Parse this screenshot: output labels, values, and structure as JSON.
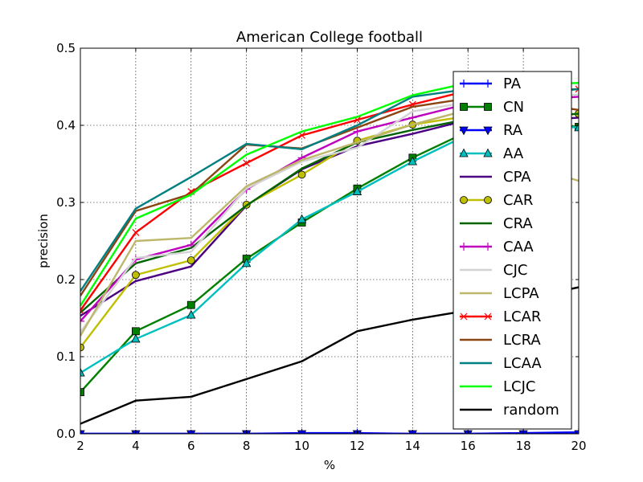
{
  "chart_data": {
    "type": "line",
    "title": "American College football",
    "xlabel": "%",
    "ylabel": "precision",
    "xlim": [
      2,
      20
    ],
    "ylim": [
      0.0,
      0.5
    ],
    "x": [
      2,
      4,
      6,
      8,
      10,
      12,
      14,
      16,
      18,
      20
    ],
    "x_ticks": [
      "2",
      "4",
      "6",
      "8",
      "10",
      "12",
      "14",
      "16",
      "18",
      "20"
    ],
    "y_ticks": [
      "0.0",
      "0.1",
      "0.2",
      "0.3",
      "0.4",
      "0.5"
    ],
    "grid": true,
    "legend_position": "right",
    "series": [
      {
        "name": "PA",
        "color": "#0000ff",
        "marker": "plus",
        "values": [
          0.0,
          0.0,
          0.0,
          0.0,
          0.001,
          0.001,
          0.0,
          0.0,
          0.001,
          0.002
        ]
      },
      {
        "name": "CN",
        "color": "#008000",
        "marker": "square",
        "values": [
          0.054,
          0.133,
          0.167,
          0.227,
          0.274,
          0.318,
          0.358,
          0.392,
          0.405,
          0.398
        ]
      },
      {
        "name": "RA",
        "color": "#0000ff",
        "marker": "triangle-down",
        "values": [
          0.0,
          0.0,
          0.0,
          0.0,
          0.0,
          0.0,
          0.0,
          0.0,
          0.0,
          0.0
        ]
      },
      {
        "name": "AA",
        "color": "#00bfbf",
        "marker": "triangle-up",
        "values": [
          0.079,
          0.123,
          0.154,
          0.221,
          0.278,
          0.314,
          0.353,
          0.388,
          0.402,
          0.397
        ]
      },
      {
        "name": "CPA",
        "color": "#4b0082",
        "marker": "none",
        "values": [
          0.153,
          0.198,
          0.217,
          0.296,
          0.343,
          0.373,
          0.389,
          0.407,
          0.405,
          0.41
        ]
      },
      {
        "name": "CAR",
        "color": "#bfbf00",
        "marker": "circle",
        "values": [
          0.112,
          0.206,
          0.225,
          0.297,
          0.336,
          0.38,
          0.401,
          0.412,
          0.41,
          0.415
        ]
      },
      {
        "name": "CRA",
        "color": "#006400",
        "marker": "none",
        "values": [
          0.157,
          0.221,
          0.241,
          0.296,
          0.344,
          0.378,
          0.394,
          0.408,
          0.41,
          0.415
        ]
      },
      {
        "name": "CAA",
        "color": "#bf00bf",
        "marker": "plus",
        "values": [
          0.146,
          0.226,
          0.245,
          0.317,
          0.358,
          0.392,
          0.41,
          0.428,
          0.432,
          0.437
        ]
      },
      {
        "name": "CJC",
        "color": "#d3d3d3",
        "marker": "none",
        "values": [
          0.132,
          0.228,
          0.236,
          0.318,
          0.353,
          0.371,
          0.418,
          0.43,
          0.432,
          0.44
        ]
      },
      {
        "name": "LCPA",
        "color": "#bdb76b",
        "marker": "none",
        "values": [
          0.127,
          0.25,
          0.254,
          0.321,
          0.355,
          0.378,
          0.401,
          0.42,
          0.35,
          0.328
        ]
      },
      {
        "name": "LCAR",
        "color": "#ff0000",
        "marker": "x",
        "values": [
          0.16,
          0.261,
          0.314,
          0.351,
          0.387,
          0.407,
          0.427,
          0.445,
          0.443,
          0.447
        ]
      },
      {
        "name": "LCRA",
        "color": "#8b4513",
        "marker": "none",
        "values": [
          0.179,
          0.289,
          0.311,
          0.375,
          0.37,
          0.397,
          0.424,
          0.435,
          0.43,
          0.42
        ]
      },
      {
        "name": "LCAA",
        "color": "#008080",
        "marker": "none",
        "values": [
          0.185,
          0.292,
          0.333,
          0.376,
          0.369,
          0.4,
          0.437,
          0.447,
          0.44,
          0.447
        ]
      },
      {
        "name": "LCJC",
        "color": "#00ff00",
        "marker": "none",
        "values": [
          0.166,
          0.279,
          0.31,
          0.362,
          0.392,
          0.411,
          0.439,
          0.455,
          0.452,
          0.455
        ]
      },
      {
        "name": "random",
        "color": "#000000",
        "marker": "none",
        "values": [
          0.013,
          0.043,
          0.048,
          0.071,
          0.094,
          0.133,
          0.148,
          0.16,
          0.175,
          0.19
        ]
      }
    ]
  }
}
